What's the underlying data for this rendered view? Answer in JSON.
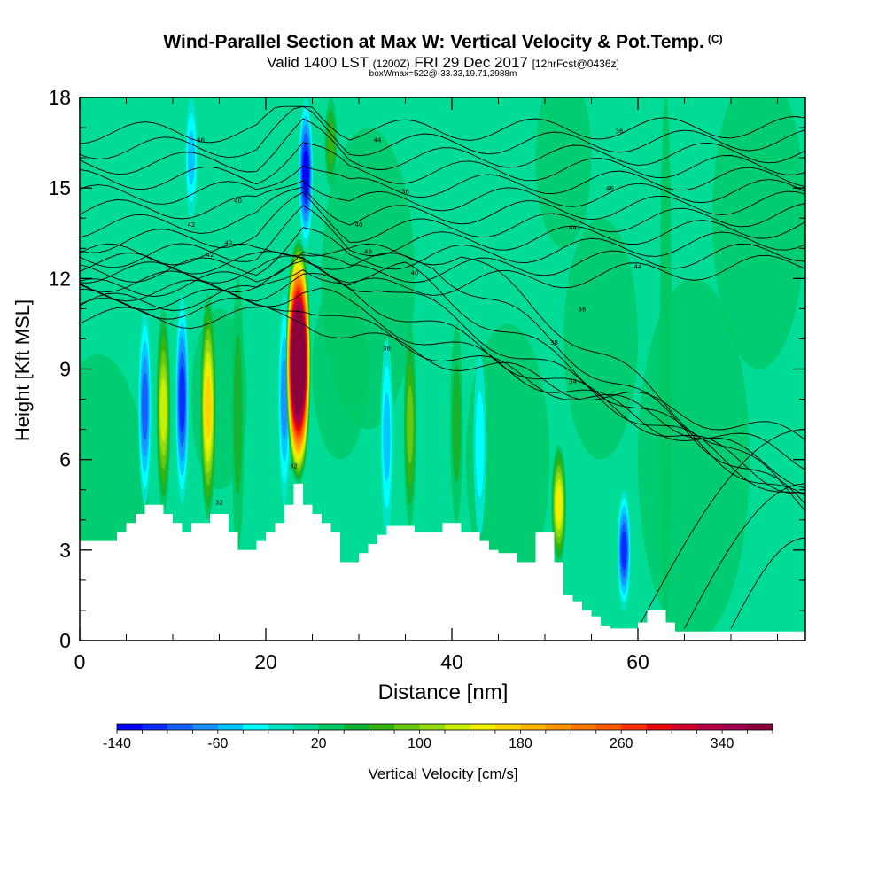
{
  "header": {
    "title": "Wind-Parallel Section at Max W: Vertical Velocity & Pot.Temp.",
    "copyright": "(C)",
    "valid": "Valid 1400 LST",
    "zulu": "(1200Z)",
    "date": "FRI 29 Dec 2017",
    "forecast": "[12hrFcst@0436z]",
    "boxinfo": "boxWmax=522@-33.33,19.71,2988m"
  },
  "chart_data": {
    "type": "heatmap",
    "xlabel": "Distance [nm]",
    "ylabel": "Height [Kft MSL]",
    "xlim": [
      0,
      78
    ],
    "ylim": [
      0,
      18
    ],
    "xticks": [
      "0",
      "20",
      "40",
      "60"
    ],
    "yticks": [
      "0",
      "3",
      "6",
      "9",
      "12",
      "15",
      "18"
    ],
    "colorbar": {
      "label": "Vertical Velocity [cm/s]",
      "min": -140,
      "max": 380,
      "step": 20,
      "tick_labels": [
        "-140",
        "-60",
        "20",
        "100",
        "180",
        "260",
        "340"
      ],
      "colors": [
        "#0000ff",
        "#0a2dff",
        "#1460ff",
        "#1e90ff",
        "#00c8ff",
        "#00ffff",
        "#00e5c8",
        "#00dc96",
        "#00c864",
        "#14b432",
        "#32b414",
        "#64c814",
        "#96dc14",
        "#c8f000",
        "#f0f000",
        "#ffd200",
        "#ffb400",
        "#ff9600",
        "#ff7800",
        "#ff5a00",
        "#ff3200",
        "#eb0a0a",
        "#d20028",
        "#b40046",
        "#a00050",
        "#8c003c"
      ]
    },
    "terrain_kft": [
      [
        0,
        3.3
      ],
      [
        3,
        3.3
      ],
      [
        4,
        3.6
      ],
      [
        5,
        3.9
      ],
      [
        6,
        4.2
      ],
      [
        7,
        4.5
      ],
      [
        8,
        4.5
      ],
      [
        9,
        4.2
      ],
      [
        10,
        3.9
      ],
      [
        11,
        3.6
      ],
      [
        12,
        3.9
      ],
      [
        13,
        3.9
      ],
      [
        14,
        4.2
      ],
      [
        15,
        4.2
      ],
      [
        16,
        3.6
      ],
      [
        17,
        3.0
      ],
      [
        18,
        3.0
      ],
      [
        19,
        3.3
      ],
      [
        20,
        3.6
      ],
      [
        21,
        3.9
      ],
      [
        22,
        4.5
      ],
      [
        23,
        5.2
      ],
      [
        24,
        4.5
      ],
      [
        25,
        4.2
      ],
      [
        26,
        3.9
      ],
      [
        27,
        3.6
      ],
      [
        28,
        2.6
      ],
      [
        29,
        2.6
      ],
      [
        30,
        2.9
      ],
      [
        31,
        3.2
      ],
      [
        32,
        3.5
      ],
      [
        33,
        3.8
      ],
      [
        34,
        3.8
      ],
      [
        35,
        3.8
      ],
      [
        36,
        3.6
      ],
      [
        37,
        3.6
      ],
      [
        38,
        3.6
      ],
      [
        39,
        3.9
      ],
      [
        40,
        3.9
      ],
      [
        41,
        3.6
      ],
      [
        42,
        3.6
      ],
      [
        43,
        3.3
      ],
      [
        44,
        3.0
      ],
      [
        45,
        2.9
      ],
      [
        46,
        2.9
      ],
      [
        47,
        2.6
      ],
      [
        48,
        2.6
      ],
      [
        49,
        3.6
      ],
      [
        50,
        3.6
      ],
      [
        51,
        2.6
      ],
      [
        52,
        1.5
      ],
      [
        53,
        1.3
      ],
      [
        54,
        1.0
      ],
      [
        55,
        0.8
      ],
      [
        56,
        0.5
      ],
      [
        57,
        0.4
      ],
      [
        58,
        0.4
      ],
      [
        59,
        0.4
      ],
      [
        60,
        0.6
      ],
      [
        61,
        1.0
      ],
      [
        62,
        1.0
      ],
      [
        63,
        0.6
      ],
      [
        64,
        0.3
      ],
      [
        70,
        0.3
      ],
      [
        78,
        0.3
      ]
    ],
    "updrafts": [
      {
        "x": 23.5,
        "y0": 5.2,
        "y1": 13.3,
        "peak": 522
      },
      {
        "x": 13.8,
        "y0": 4.0,
        "y1": 11.5,
        "peak": 170
      },
      {
        "x": 9.0,
        "y0": 4.3,
        "y1": 11.0,
        "peak": 130
      },
      {
        "x": 51.5,
        "y0": 2.5,
        "y1": 6.5,
        "peak": 150
      },
      {
        "x": 35.5,
        "y0": 3.8,
        "y1": 10.5,
        "peak": 90
      },
      {
        "x": 40.5,
        "y0": 3.9,
        "y1": 10.5,
        "peak": 60
      },
      {
        "x": 17.0,
        "y0": 3.0,
        "y1": 12.0,
        "peak": 50
      },
      {
        "x": 27.0,
        "y0": 15.0,
        "y1": 18.0,
        "peak": 70
      },
      {
        "x": 63.0,
        "y0": 0.5,
        "y1": 18.0,
        "peak": 40
      }
    ],
    "downdrafts": [
      {
        "x": 11.0,
        "y0": 4.5,
        "y1": 11.5,
        "peak": -110
      },
      {
        "x": 7.0,
        "y0": 4.5,
        "y1": 11.0,
        "peak": -100
      },
      {
        "x": 22.0,
        "y0": 4.5,
        "y1": 11.5,
        "peak": -80
      },
      {
        "x": 24.3,
        "y0": 13.0,
        "y1": 18.0,
        "peak": -140
      },
      {
        "x": 58.5,
        "y0": 1.0,
        "y1": 5.0,
        "peak": -110
      },
      {
        "x": 33.0,
        "y0": 3.5,
        "y1": 10.0,
        "peak": -60
      },
      {
        "x": 43.0,
        "y0": 3.5,
        "y1": 9.5,
        "peak": -40
      },
      {
        "x": 12.0,
        "y0": 14.0,
        "y1": 18.0,
        "peak": -60
      }
    ],
    "theta_labels": [
      "46",
      "44",
      "36",
      "40",
      "38",
      "46",
      "42",
      "40",
      "44",
      "42",
      "46",
      "44",
      "42",
      "40",
      "36",
      "38",
      "38",
      "34",
      "32",
      "32"
    ]
  }
}
